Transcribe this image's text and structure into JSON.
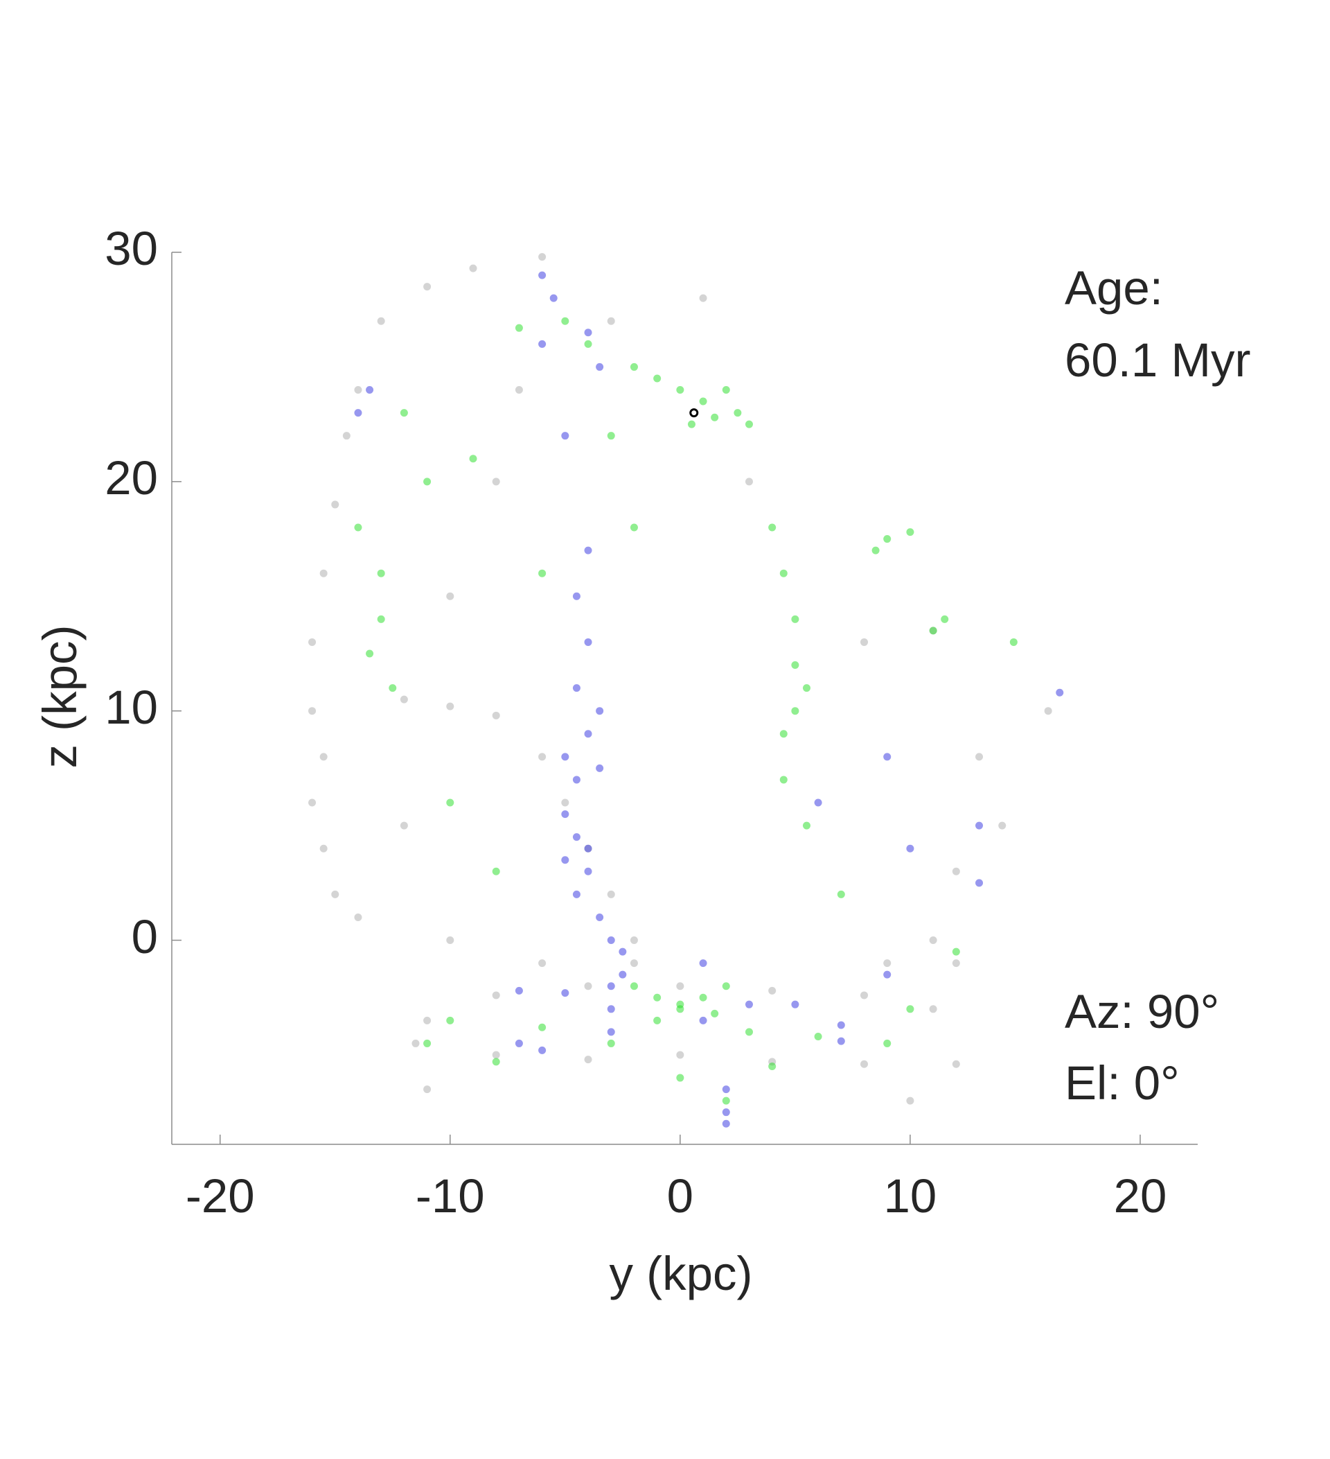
{
  "chart_data": {
    "type": "scatter",
    "xlabel": "y (kpc)",
    "ylabel": "z (kpc)",
    "annotations": [
      "Age:",
      "60.1 Myr",
      "Az: 90°",
      "El: 0°"
    ],
    "xlim": [
      -22.1,
      22.5
    ],
    "xticks": [
      -20,
      -10,
      0,
      10,
      20
    ],
    "ylim": [
      -8.9,
      30
    ],
    "yticks": [
      0,
      10,
      20,
      30
    ],
    "grid": false,
    "series": [
      {
        "color": "#aaaaaa",
        "x": [
          -13,
          -11,
          -9,
          -6,
          -14,
          -14.5,
          -15,
          -15.5,
          -16,
          -16,
          -15.5,
          -16,
          -15.5,
          -15,
          -14,
          -12,
          -10,
          -8,
          -6,
          -5,
          -4,
          -3,
          -2,
          -2,
          -11.5,
          -8,
          -4,
          0,
          4,
          8,
          12,
          11,
          8,
          4,
          0,
          -4,
          -8,
          -11,
          -10,
          -8,
          -12,
          -10,
          -6,
          8,
          11,
          13,
          12,
          11,
          9,
          14,
          3,
          1,
          -3,
          -7,
          -11,
          10,
          16,
          12
        ],
        "values": [
          27,
          28.5,
          29.3,
          29.8,
          24,
          22,
          19,
          16,
          13,
          10,
          8,
          6,
          4,
          2,
          1,
          10.5,
          10.2,
          9.8,
          8,
          6,
          4,
          2,
          0,
          -1,
          -4.5,
          -5,
          -5.2,
          -5,
          -5.3,
          -5.4,
          -5.4,
          -3,
          -2.4,
          -2.2,
          -2,
          -2,
          -2.4,
          -3.5,
          15,
          20,
          5,
          0,
          -1,
          13,
          13.5,
          8,
          3,
          0,
          -1,
          5,
          20,
          28,
          27,
          24,
          -6.5,
          -7,
          10,
          -1
        ]
      },
      {
        "color": "#3030e0",
        "x": [
          -4,
          -4.5,
          -4,
          -4.5,
          -3.5,
          -4,
          -5,
          -4.5,
          -3.5,
          -5,
          -4.5,
          -4,
          -5,
          -4,
          -4.5,
          -3.5,
          -3,
          -2.5,
          -2.5,
          -3,
          -5,
          -6,
          -5.5,
          -6,
          -3.5,
          -4,
          -13.5,
          -14,
          -7,
          -5,
          -3,
          -3,
          -7,
          -6,
          1,
          3,
          5,
          7,
          7,
          2,
          2,
          2,
          10,
          13,
          13,
          9,
          6,
          1,
          16.5,
          9
        ],
        "values": [
          17,
          15,
          13,
          11,
          10,
          9,
          8,
          7,
          7.5,
          5.5,
          4.5,
          4,
          3.5,
          3,
          2,
          1,
          0,
          -0.5,
          -1.5,
          -2,
          22,
          26,
          28,
          29,
          25,
          26.5,
          24,
          23,
          -2.2,
          -2.3,
          -3,
          -4,
          -4.5,
          -4.8,
          -3.5,
          -2.8,
          -2.8,
          -3.7,
          -4.4,
          -6.5,
          -7.5,
          -8,
          4,
          5,
          2.5,
          8,
          6,
          -1,
          10.8,
          -1.5
        ]
      },
      {
        "color": "#22dd22",
        "x": [
          0,
          1,
          1.5,
          0.5,
          -1,
          2,
          -2,
          -4,
          -5,
          -7,
          2.5,
          3,
          -3,
          4,
          4.5,
          5,
          5,
          5.5,
          5,
          4.5,
          4.5,
          5.5,
          8.5,
          9,
          10,
          11.5,
          11,
          -13.5,
          -13,
          -12.5,
          -13,
          -14,
          -11,
          -9,
          -12,
          -2,
          -1,
          0,
          1,
          2,
          -1,
          0,
          1.5,
          -3,
          3,
          -6,
          -10,
          -11,
          6,
          9,
          10,
          -8,
          4,
          0,
          2,
          -10,
          -8,
          7,
          12,
          14.5,
          -6,
          -2
        ],
        "values": [
          24,
          23.5,
          22.8,
          22.5,
          24.5,
          24,
          25,
          26,
          27,
          26.7,
          23,
          22.5,
          22,
          18,
          16,
          14,
          12,
          11,
          10,
          9,
          7,
          5,
          17,
          17.5,
          17.8,
          14,
          13.5,
          12.5,
          14,
          11,
          16,
          18,
          20,
          21,
          23,
          -2,
          -2.5,
          -2.8,
          -2.5,
          -2,
          -3.5,
          -3,
          -3.2,
          -4.5,
          -4,
          -3.8,
          -3.5,
          -4.5,
          -4.2,
          -4.5,
          -3,
          -5.3,
          -5.5,
          -6,
          -7,
          6,
          3,
          2,
          -0.5,
          13,
          16,
          18
        ]
      },
      {
        "color": "#000000",
        "x": [
          0.6
        ],
        "values": [
          23
        ]
      }
    ]
  }
}
